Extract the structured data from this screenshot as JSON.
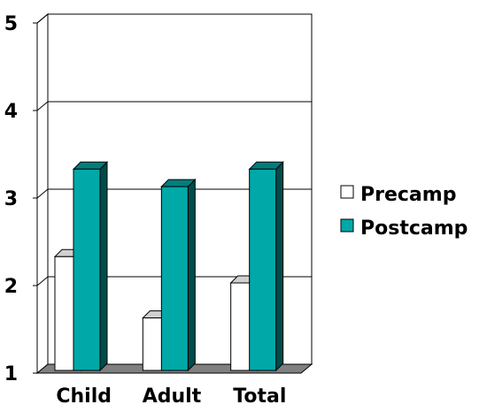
{
  "chart_data": {
    "type": "bar",
    "title": "",
    "xlabel": "",
    "ylabel": "",
    "categories": [
      "Child",
      "Adult",
      "Total"
    ],
    "series": [
      {
        "name": "Precamp",
        "values": [
          2.3,
          1.6,
          2.0
        ],
        "color": "#ffffff"
      },
      {
        "name": "Postcamp",
        "values": [
          3.3,
          3.1,
          3.3
        ],
        "color": "#00a8a8"
      }
    ],
    "ylim": [
      1,
      5
    ],
    "yticks": [
      "1",
      "2",
      "3",
      "4",
      "5"
    ],
    "grid": true,
    "legend_position": "right",
    "style": "3d-clustered-bar"
  }
}
